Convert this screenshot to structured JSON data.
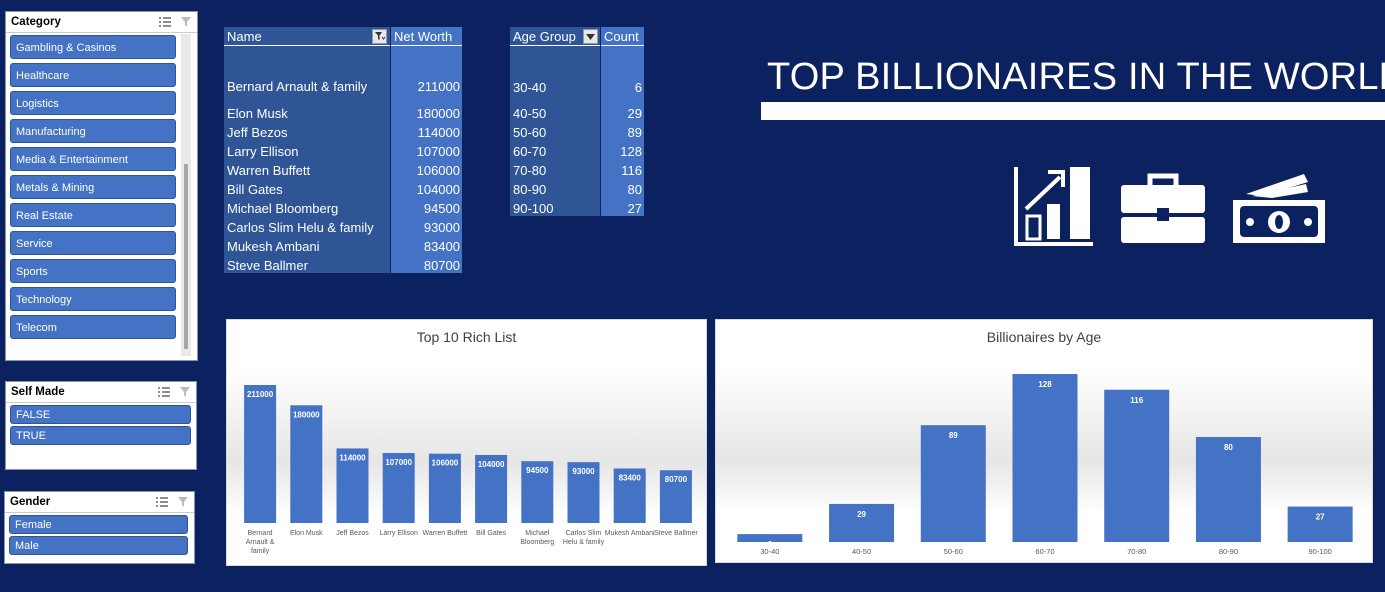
{
  "slicers": {
    "category": {
      "title": "Category",
      "items": [
        "Gambling & Casinos",
        "Healthcare",
        "Logistics",
        "Manufacturing",
        "Media & Entertainment",
        "Metals & Mining",
        "Real Estate",
        "Service",
        "Sports",
        "Technology",
        "Telecom"
      ]
    },
    "self_made": {
      "title": "Self Made",
      "items": [
        "FALSE",
        "TRUE"
      ]
    },
    "gender": {
      "title": "Gender",
      "items": [
        "Female",
        "Male"
      ]
    }
  },
  "networth_table": {
    "headers": {
      "name": "Name",
      "value": "Net Worth"
    },
    "rows": [
      {
        "name": "Bernard Arnault & family",
        "value": "211000"
      },
      {
        "name": "Elon Musk",
        "value": "180000"
      },
      {
        "name": "Jeff Bezos",
        "value": "114000"
      },
      {
        "name": "Larry Ellison",
        "value": "107000"
      },
      {
        "name": "Warren Buffett",
        "value": "106000"
      },
      {
        "name": "Bill Gates",
        "value": "104000"
      },
      {
        "name": "Michael Bloomberg",
        "value": "94500"
      },
      {
        "name": "Carlos Slim Helu & family",
        "value": "93000"
      },
      {
        "name": "Mukesh Ambani",
        "value": "83400"
      },
      {
        "name": "Steve Ballmer",
        "value": "80700"
      }
    ]
  },
  "age_table": {
    "headers": {
      "group": "Age Group",
      "count": "Count"
    },
    "rows": [
      {
        "group": "30-40",
        "count": "6"
      },
      {
        "group": "40-50",
        "count": "29"
      },
      {
        "group": "50-60",
        "count": "89"
      },
      {
        "group": "60-70",
        "count": "128"
      },
      {
        "group": "70-80",
        "count": "116"
      },
      {
        "group": "80-90",
        "count": "80"
      },
      {
        "group": "90-100",
        "count": "27"
      }
    ]
  },
  "dashboard_title": "TOP BILLIONAIRES IN THE WORLD",
  "icons": [
    "growth-chart-icon",
    "briefcase-icon",
    "money-icon"
  ],
  "colors": {
    "background": "#0c2160",
    "bar": "#4472c4",
    "table_fill": "#2f5597",
    "slicer_item": "#4472c4"
  },
  "chart_data": [
    {
      "type": "bar",
      "title": "Top 10 Rich List",
      "categories": [
        "Bernard Arnault & family",
        "Elon Musk",
        "Jeff Bezos",
        "Larry Ellison",
        "Warren Buffett",
        "Bill Gates",
        "Michael Bloomberg",
        "Carlos Slim Helu & family",
        "Mukesh Ambani",
        "Steve Ballmer"
      ],
      "values": [
        211000,
        180000,
        114000,
        107000,
        106000,
        104000,
        94500,
        93000,
        83400,
        80700
      ],
      "ylim": [
        0,
        211000
      ],
      "grid": false,
      "data_labels": true
    },
    {
      "type": "bar",
      "title": "Billionaires by Age",
      "categories": [
        "30-40",
        "40-50",
        "50-60",
        "60-70",
        "70-80",
        "80-90",
        "90-100"
      ],
      "values": [
        6,
        29,
        89,
        128,
        116,
        80,
        27
      ],
      "ylim": [
        0,
        128
      ],
      "grid": false,
      "data_labels": true
    }
  ]
}
